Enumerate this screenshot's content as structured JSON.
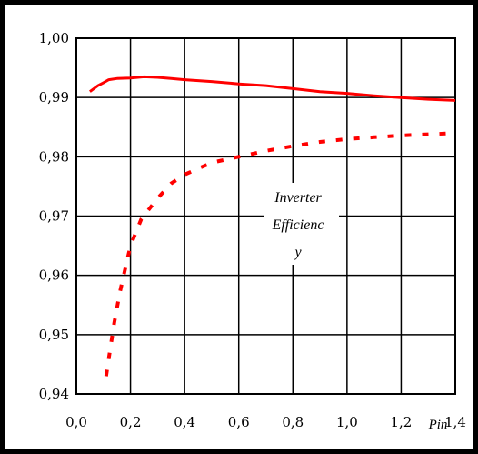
{
  "chart_data": {
    "type": "line",
    "title": "",
    "xlabel": "Pin",
    "ylabel": "",
    "xlim": [
      0.0,
      1.4
    ],
    "ylim": [
      0.94,
      1.0
    ],
    "grid": true,
    "x_ticks": [
      "0,0",
      "0,2",
      "0,4",
      "0,6",
      "0,8",
      "1,0",
      "1,2",
      "1,4"
    ],
    "y_ticks": [
      "0,94",
      "0,95",
      "0,96",
      "0,97",
      "0,98",
      "0,99",
      "1,00"
    ],
    "annotation": [
      "Inverter",
      "Efficienc",
      "y"
    ],
    "series": [
      {
        "style": "solid",
        "color": "#ff0000",
        "x": [
          0.05,
          0.08,
          0.1,
          0.12,
          0.15,
          0.2,
          0.25,
          0.3,
          0.35,
          0.4,
          0.5,
          0.6,
          0.7,
          0.8,
          0.9,
          1.0,
          1.1,
          1.2,
          1.3,
          1.4
        ],
        "y": [
          0.991,
          0.992,
          0.9925,
          0.993,
          0.9932,
          0.9933,
          0.9935,
          0.9934,
          0.9932,
          0.993,
          0.9927,
          0.9923,
          0.992,
          0.9915,
          0.991,
          0.9907,
          0.9903,
          0.99,
          0.9897,
          0.9895
        ]
      },
      {
        "style": "dashed",
        "color": "#ff0000",
        "x": [
          0.11,
          0.12,
          0.14,
          0.16,
          0.18,
          0.2,
          0.24,
          0.3,
          0.35,
          0.4,
          0.5,
          0.6,
          0.7,
          0.8,
          0.9,
          1.0,
          1.1,
          1.2,
          1.3,
          1.4
        ],
        "y": [
          0.943,
          0.946,
          0.952,
          0.957,
          0.961,
          0.965,
          0.9695,
          0.973,
          0.9755,
          0.977,
          0.979,
          0.98,
          0.981,
          0.9818,
          0.9825,
          0.983,
          0.9833,
          0.9836,
          0.9838,
          0.984
        ]
      }
    ]
  }
}
